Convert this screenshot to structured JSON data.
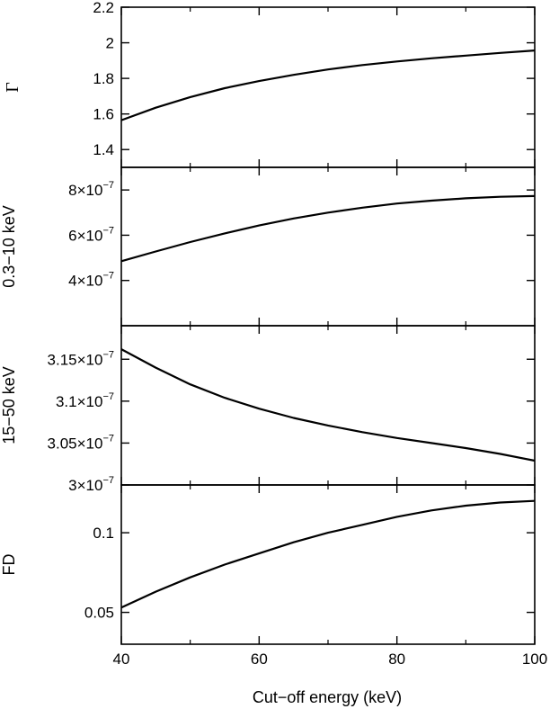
{
  "chart_data": {
    "type": "line",
    "xlabel": "Cut−off energy (keV)",
    "xlim": [
      40,
      100
    ],
    "x_ticks": [
      40,
      60,
      80,
      100
    ],
    "panels": [
      {
        "ylabel": "Γ",
        "ylim": [
          1.3,
          2.2
        ],
        "y_ticks": [
          {
            "value": 1.4,
            "label": "1.4"
          },
          {
            "value": 1.6,
            "label": "1.6"
          },
          {
            "value": 1.8,
            "label": "1.8"
          },
          {
            "value": 2.0,
            "label": "2"
          },
          {
            "value": 2.2,
            "label": "2.2"
          }
        ],
        "series": [
          {
            "x": [
              40,
              45,
              50,
              55,
              60,
              65,
              70,
              75,
              80,
              85,
              90,
              95,
              100
            ],
            "y": [
              1.565,
              1.635,
              1.695,
              1.745,
              1.785,
              1.82,
              1.85,
              1.875,
              1.895,
              1.913,
              1.928,
              1.943,
              1.957
            ]
          }
        ]
      },
      {
        "ylabel": "0.3−10 keV",
        "ylim": [
          2e-07,
          9e-07
        ],
        "y_ticks": [
          {
            "value": 4e-07,
            "mantissa": "4×10",
            "exp": "−7"
          },
          {
            "value": 6e-07,
            "mantissa": "6×10",
            "exp": "−7"
          },
          {
            "value": 8e-07,
            "mantissa": "8×10",
            "exp": "−7"
          }
        ],
        "series": [
          {
            "x": [
              40,
              45,
              50,
              55,
              60,
              65,
              70,
              75,
              80,
              85,
              90,
              95,
              100
            ],
            "y": [
              4.85e-07,
              5.28e-07,
              5.7e-07,
              6.08e-07,
              6.43e-07,
              6.74e-07,
              7e-07,
              7.22e-07,
              7.4e-07,
              7.53e-07,
              7.63e-07,
              7.7e-07,
              7.73e-07
            ]
          }
        ]
      },
      {
        "ylabel": "15−50 keV",
        "ylim": [
          3e-07,
          3.19e-07
        ],
        "y_ticks": [
          {
            "value": 3e-07,
            "mantissa": "3×10",
            "exp": "−7"
          },
          {
            "value": 3.05e-07,
            "mantissa": "3.05×10",
            "exp": "−7"
          },
          {
            "value": 3.1e-07,
            "mantissa": "3.1×10",
            "exp": "−7"
          },
          {
            "value": 3.15e-07,
            "mantissa": "3.15×10",
            "exp": "−7"
          }
        ],
        "series": [
          {
            "x": [
              40,
              45,
              50,
              55,
              60,
              65,
              70,
              75,
              80,
              85,
              90,
              95,
              100
            ],
            "y": [
              3.162e-07,
              3.14e-07,
              3.12e-07,
              3.104e-07,
              3.091e-07,
              3.08e-07,
              3.071e-07,
              3.063e-07,
              3.056e-07,
              3.05e-07,
              3.044e-07,
              3.037e-07,
              3.029e-07
            ]
          }
        ]
      },
      {
        "ylabel": "FD",
        "ylim": [
          0.03,
          0.13
        ],
        "y_ticks": [
          {
            "value": 0.05,
            "label": "0.05"
          },
          {
            "value": 0.1,
            "label": "0.1"
          }
        ],
        "series": [
          {
            "x": [
              40,
              45,
              50,
              55,
              60,
              65,
              70,
              75,
              80,
              85,
              90,
              95,
              100
            ],
            "y": [
              0.053,
              0.063,
              0.072,
              0.08,
              0.087,
              0.094,
              0.1,
              0.105,
              0.11,
              0.114,
              0.117,
              0.119,
              0.12
            ]
          }
        ]
      }
    ]
  }
}
